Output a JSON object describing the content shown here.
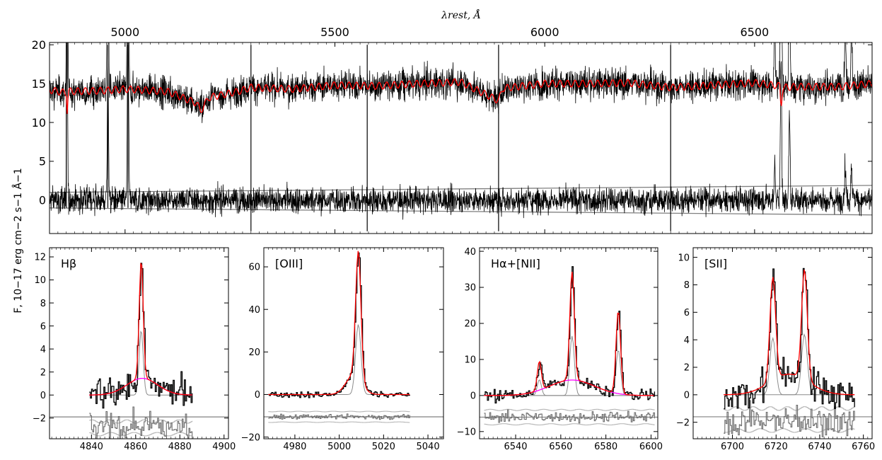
{
  "figure": {
    "top_axis_label": "λrest, Å",
    "y_label": "F, 10−17 erg cm−2 s−1 Å−1"
  },
  "chart_data": [
    {
      "id": "main",
      "type": "line",
      "top_axis_label": "λrest, Å",
      "xlim": [
        4820,
        6780
      ],
      "ylim": [
        -4.3,
        20.3
      ],
      "top_ticks": [
        5000,
        5500,
        6000,
        6500
      ],
      "top_tick_labels": [
        "5000",
        "5500",
        "6000",
        "6500"
      ],
      "y_ticks": [
        0,
        5,
        10,
        15,
        20
      ],
      "y_tick_labels": [
        "0",
        "5",
        "10",
        "15",
        "20"
      ],
      "series": [
        {
          "role": "observed spectrum",
          "color": "#000000",
          "baseline": 14.3,
          "noise": 1.4
        },
        {
          "role": "stellar population model",
          "color": "#ff0000",
          "points": [
            [
              4820,
              14.2
            ],
            [
              4860,
              13.8
            ],
            [
              4862,
              11.5
            ],
            [
              4865,
              14.0
            ],
            [
              4950,
              14.1
            ],
            [
              5000,
              14.3
            ],
            [
              5100,
              14.0
            ],
            [
              5170,
              12.5
            ],
            [
              5180,
              11.5
            ],
            [
              5200,
              13.2
            ],
            [
              5270,
              14.0
            ],
            [
              5300,
              14.5
            ],
            [
              5400,
              14.3
            ],
            [
              5500,
              14.8
            ],
            [
              5600,
              14.7
            ],
            [
              5700,
              15.0
            ],
            [
              5800,
              15.2
            ],
            [
              5890,
              12.8
            ],
            [
              5900,
              14.4
            ],
            [
              6000,
              15.0
            ],
            [
              6100,
              15.0
            ],
            [
              6200,
              15.1
            ],
            [
              6300,
              14.5
            ],
            [
              6400,
              14.8
            ],
            [
              6500,
              15.1
            ],
            [
              6560,
              14.7
            ],
            [
              6563,
              11.8
            ],
            [
              6567,
              14.5
            ],
            [
              6600,
              14.6
            ],
            [
              6700,
              14.6
            ],
            [
              6780,
              15.0
            ]
          ]
        },
        {
          "role": "residuals",
          "color": "#000000",
          "baseline": 0,
          "noise": 1.2
        },
        {
          "role": "upper error envelope",
          "color": "#808080",
          "points": [
            [
              4820,
              1.0
            ],
            [
              6780,
              1.9
            ]
          ]
        },
        {
          "role": "lower error envelope",
          "color": "#808080",
          "points": [
            [
              4820,
              -1.0
            ],
            [
              6780,
              -1.9
            ]
          ]
        }
      ],
      "lines": [
        {
          "x": 4860,
          "y_range": [
            -1,
            20
          ]
        },
        {
          "x": 4959,
          "y_range": [
            -1,
            20
          ]
        },
        {
          "x": 5007,
          "y_range": [
            -1,
            20
          ]
        },
        {
          "x": 5300,
          "y_range": [
            -4,
            20
          ]
        },
        {
          "x": 5577,
          "y_range": [
            -4,
            20
          ]
        },
        {
          "x": 5890,
          "y_range": [
            -4,
            20
          ]
        },
        {
          "x": 6300,
          "y_range": [
            -4,
            20
          ]
        }
      ]
    },
    {
      "id": "hbeta",
      "type": "line",
      "label": "Hβ",
      "xlim": [
        4821,
        4902
      ],
      "ylim": [
        -3.8,
        12.8
      ],
      "x_ticks": [
        4840,
        4860,
        4880,
        4900
      ],
      "x_tick_labels": [
        "4840",
        "4860",
        "4880",
        "4900"
      ],
      "y_ticks": [
        -2,
        0,
        2,
        4,
        6,
        8,
        10,
        12
      ],
      "y_tick_labels": [
        "−2",
        "0",
        "2",
        "4",
        "6",
        "8",
        "10",
        "12"
      ],
      "data_range": [
        4839,
        4886
      ],
      "components": [
        {
          "role": "narrow",
          "center": 4862.5,
          "amplitude": 10.3,
          "sigma": 0.9
        },
        {
          "role": "broad",
          "center": 4863,
          "amplitude": 1.45,
          "sigma": 7
        }
      ],
      "noise": 1.0,
      "offset_level": -1.9,
      "residual_baseline": -2.8,
      "error_band": [
        -2.3,
        -3.4
      ]
    },
    {
      "id": "oiii",
      "type": "line",
      "label": "[OIII]",
      "xlim": [
        4966,
        5047
      ],
      "ylim": [
        -20.8,
        69
      ],
      "x_ticks": [
        4980,
        5000,
        5020,
        5040
      ],
      "x_tick_labels": [
        "4980",
        "5000",
        "5020",
        "5040"
      ],
      "y_ticks": [
        -20,
        0,
        20,
        40,
        60
      ],
      "y_tick_labels": [
        "−20",
        "0",
        "20",
        "40",
        "60"
      ],
      "data_range": [
        4968,
        5032
      ],
      "components": [
        {
          "role": "narrow",
          "center": 5008.6,
          "amplitude": 60,
          "sigma": 1.2
        },
        {
          "role": "wing",
          "center": 5006.5,
          "amplitude": 9,
          "sigma": 3.5
        }
      ],
      "noise": 1.0,
      "offset_level": -10.5,
      "residual_baseline": -10.5,
      "error_band": [
        -8,
        -13
      ]
    },
    {
      "id": "halpha",
      "type": "line",
      "label": "Hα+[NII]",
      "xlim": [
        6524,
        6603
      ],
      "ylim": [
        -12,
        41
      ],
      "x_ticks": [
        6540,
        6560,
        6580,
        6600
      ],
      "x_tick_labels": [
        "6540",
        "6560",
        "6580",
        "6600"
      ],
      "y_ticks": [
        -10,
        0,
        10,
        20,
        30,
        40
      ],
      "y_tick_labels": [
        "−10",
        "0",
        "10",
        "20",
        "30",
        "40"
      ],
      "data_range": [
        6526,
        6602
      ],
      "components": [
        {
          "role": "[NII] 6548",
          "center": 6550.5,
          "amplitude": 8,
          "sigma": 0.9
        },
        {
          "role": "Hα narrow",
          "center": 6565,
          "amplitude": 30,
          "sigma": 1.0
        },
        {
          "role": "[NII] 6583",
          "center": 6585.5,
          "amplitude": 23,
          "sigma": 1.0
        },
        {
          "role": "broad",
          "center": 6565,
          "amplitude": 4.3,
          "sigma": 10
        }
      ],
      "noise": 1.2,
      "offset_level": -6,
      "residual_baseline": -6,
      "error_band": [
        -4,
        -8
      ]
    },
    {
      "id": "sii",
      "type": "line",
      "label": "[SII]",
      "xlim": [
        6682,
        6764
      ],
      "ylim": [
        -3.2,
        10.7
      ],
      "x_ticks": [
        6700,
        6720,
        6740,
        6760
      ],
      "x_tick_labels": [
        "6700",
        "6720",
        "6740",
        "6760"
      ],
      "y_ticks": [
        -2,
        0,
        2,
        4,
        6,
        8,
        10
      ],
      "y_tick_labels": [
        "−2",
        "0",
        "2",
        "4",
        "6",
        "8",
        "10"
      ],
      "data_range": [
        6696,
        6756
      ],
      "components": [
        {
          "role": "[SII] 6716",
          "center": 6718.5,
          "amplitude": 7.5,
          "sigma": 1.3
        },
        {
          "role": "[SII] 6731",
          "center": 6733,
          "amplitude": 8.0,
          "sigma": 1.3
        },
        {
          "role": "wing",
          "center": 6726,
          "amplitude": 1.5,
          "sigma": 9
        }
      ],
      "noise": 0.9,
      "offset_level": -1.6,
      "residual_baseline": -1.9,
      "error_band": [
        -1.0,
        -2.6
      ]
    }
  ],
  "colors": {
    "data": "#000000",
    "model": "#ff0000",
    "broad_component": "#ff00ff",
    "components": "#8c8c8c",
    "residual": "#6e6e6e",
    "error": "#b4b4b4",
    "offset_line": "#808080"
  }
}
